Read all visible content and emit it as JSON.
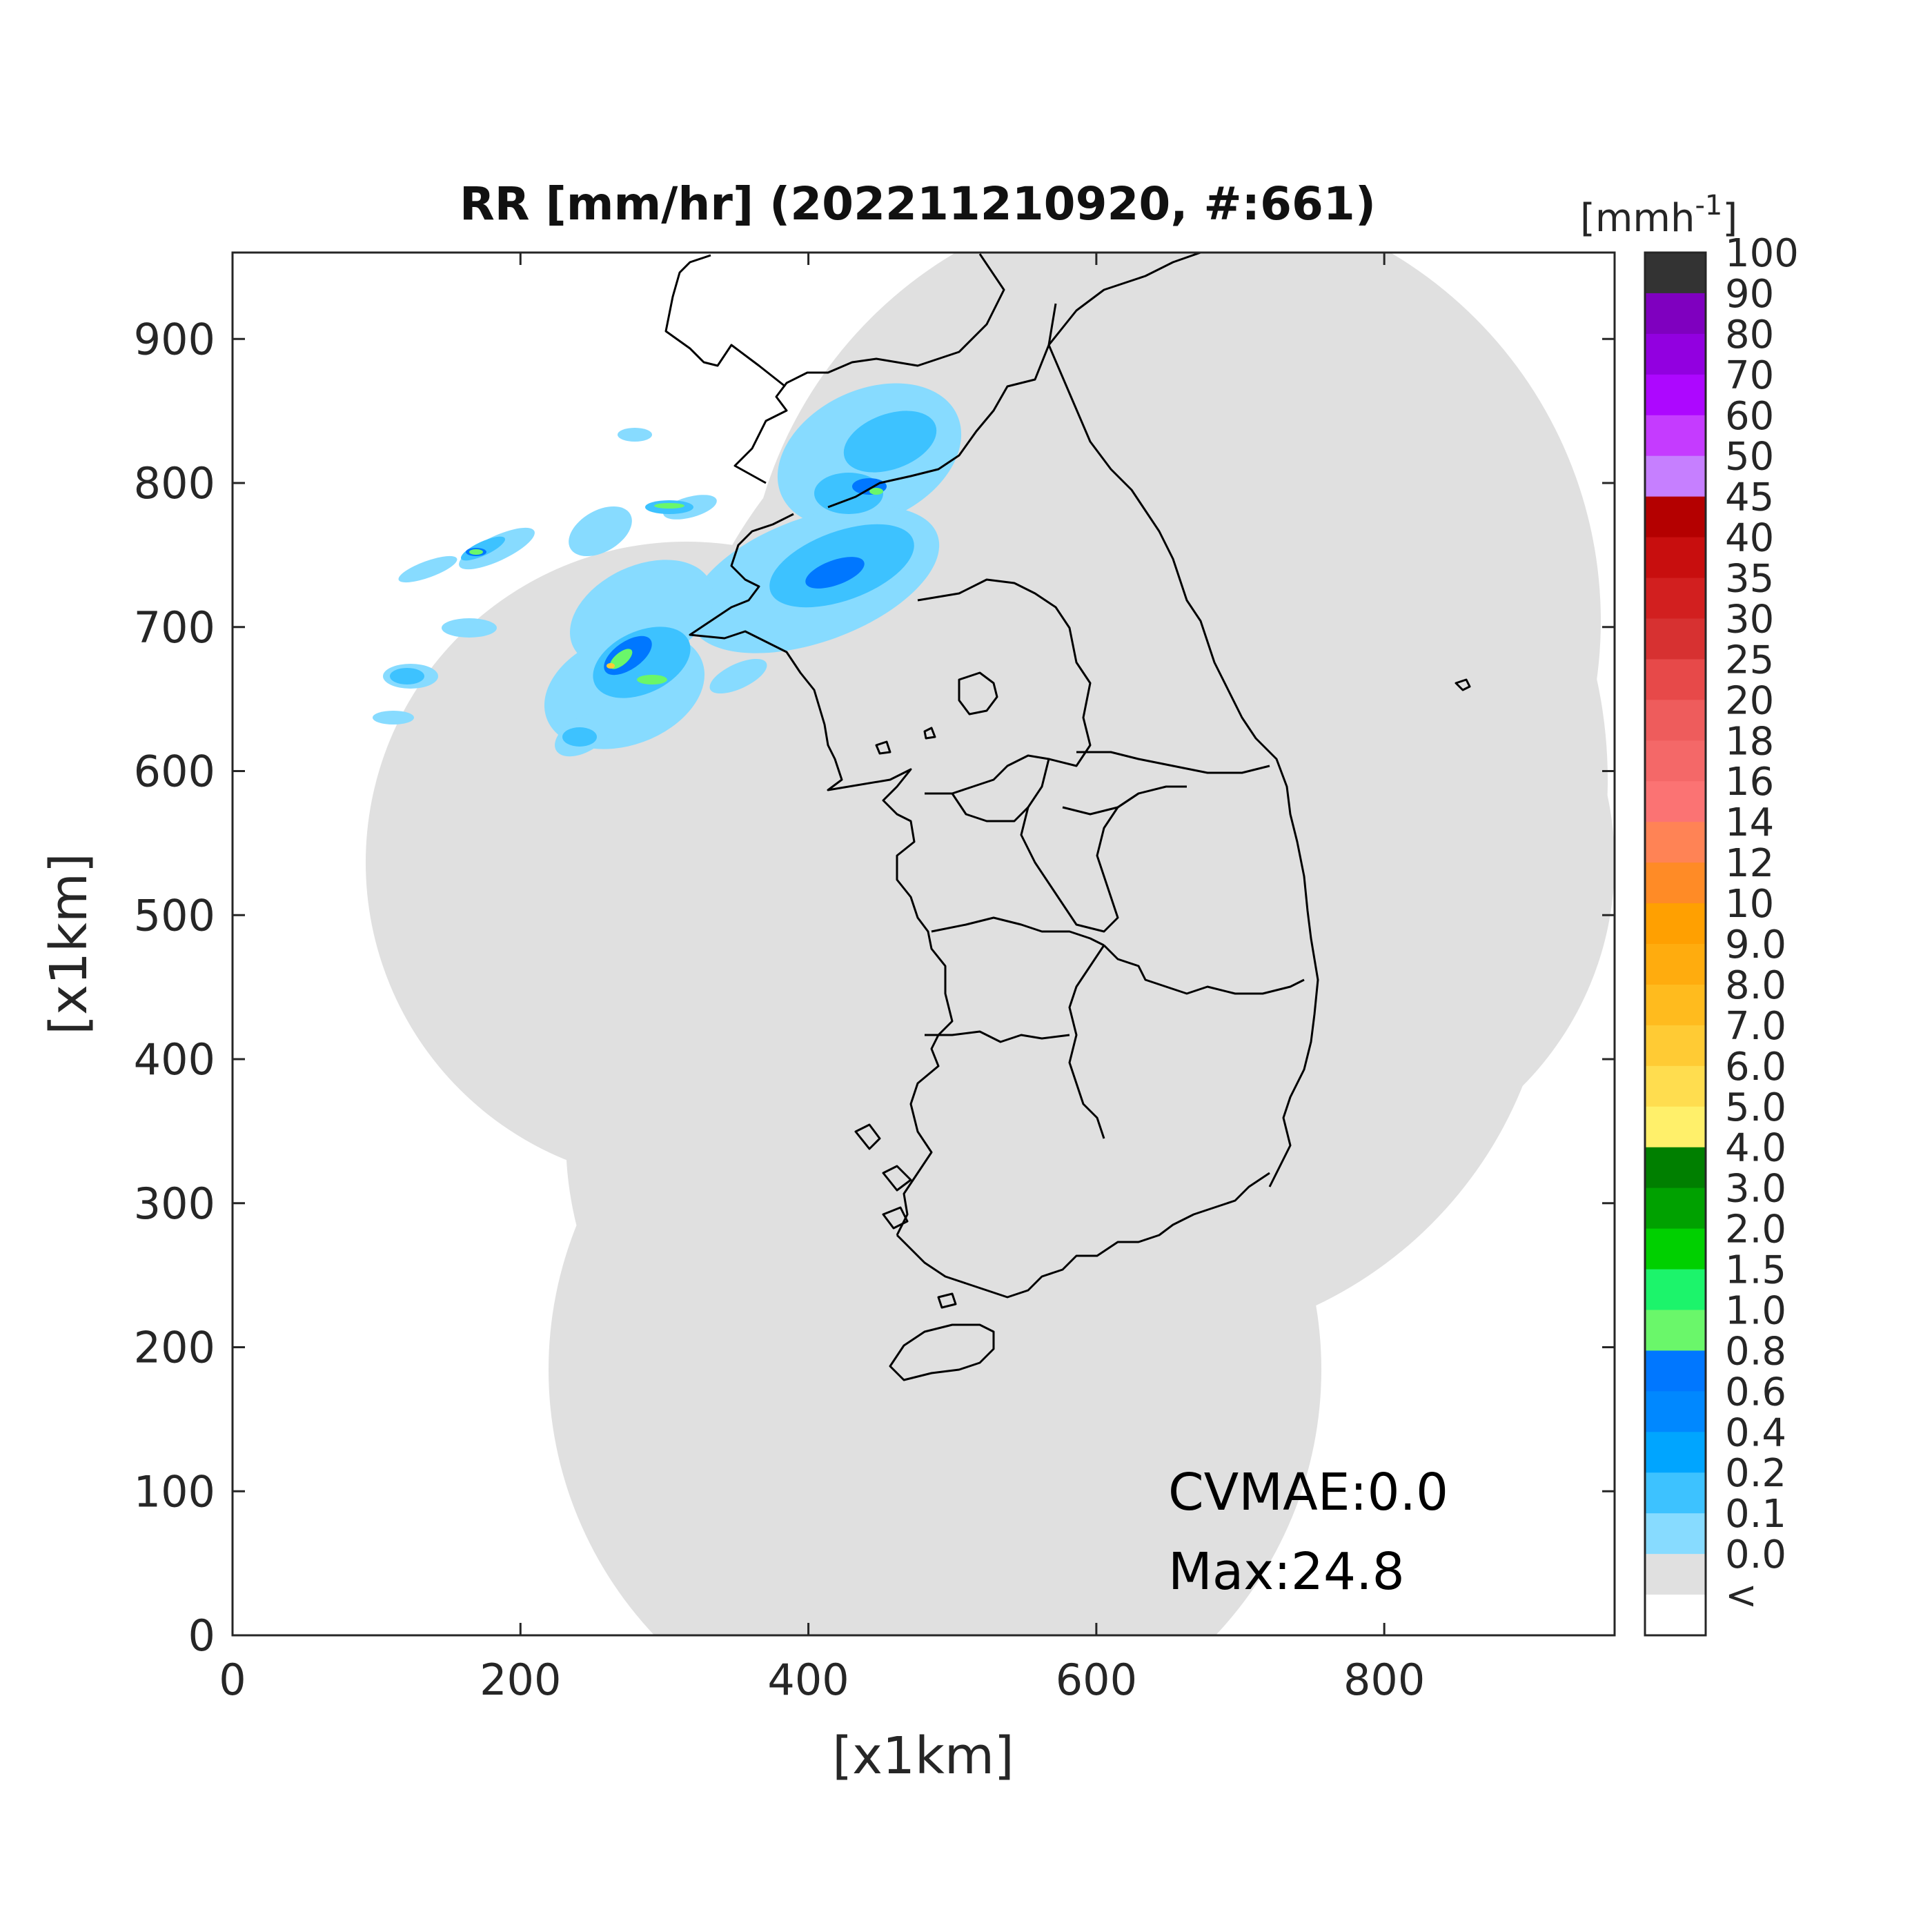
{
  "title": "RR [mm/hr] (202211210920, #:661)",
  "colorbar": {
    "unit_base": "[mmh",
    "unit_sup": "-1",
    "unit_close": "]",
    "labels": [
      "100",
      "90",
      "80",
      "70",
      "60",
      "50",
      "45",
      "40",
      "35",
      "30",
      "25",
      "20",
      "18",
      "16",
      "14",
      "12",
      "10",
      "9.0",
      "8.0",
      "7.0",
      "6.0",
      "5.0",
      "4.0",
      "3.0",
      "2.0",
      "1.5",
      "1.0",
      "0.8",
      "0.6",
      "0.4",
      "0.2",
      "0.1",
      "0.0",
      "<"
    ],
    "colors": [
      "#333333",
      "#7f00bf",
      "#9200e0",
      "#ad07ff",
      "#c53bff",
      "#c67fff",
      "#b40000",
      "#c80e0e",
      "#d21f1f",
      "#d73131",
      "#e74949",
      "#ee5c5c",
      "#f46868",
      "#fb7373",
      "#ff8355",
      "#ff8b26",
      "#ffa001",
      "#ffac0e",
      "#ffbb1e",
      "#ffcb34",
      "#ffdd4f",
      "#fff06a",
      "#007f00",
      "#00a100",
      "#00d000",
      "#1cf46b",
      "#6af76a",
      "#0077ff",
      "#0088ff",
      "#00a5ff",
      "#3dc2ff",
      "#87dbff",
      "#e0e0e0",
      "#ffffff"
    ]
  },
  "annotations": {
    "cvmae": "CVMAE:0.0",
    "max": "Max:24.8"
  },
  "chart_data": {
    "type": "heatmap",
    "title": "RR [mm/hr] (202211210920, #:661)",
    "xlabel": "[x1km]",
    "ylabel": "[x1km]",
    "xlim": [
      0,
      960
    ],
    "ylim": [
      0,
      960
    ],
    "xticks": [
      0,
      200,
      400,
      600,
      800
    ],
    "yticks": [
      0,
      100,
      200,
      300,
      400,
      500,
      600,
      700,
      800,
      900
    ],
    "legend": "right colorbar"
  }
}
